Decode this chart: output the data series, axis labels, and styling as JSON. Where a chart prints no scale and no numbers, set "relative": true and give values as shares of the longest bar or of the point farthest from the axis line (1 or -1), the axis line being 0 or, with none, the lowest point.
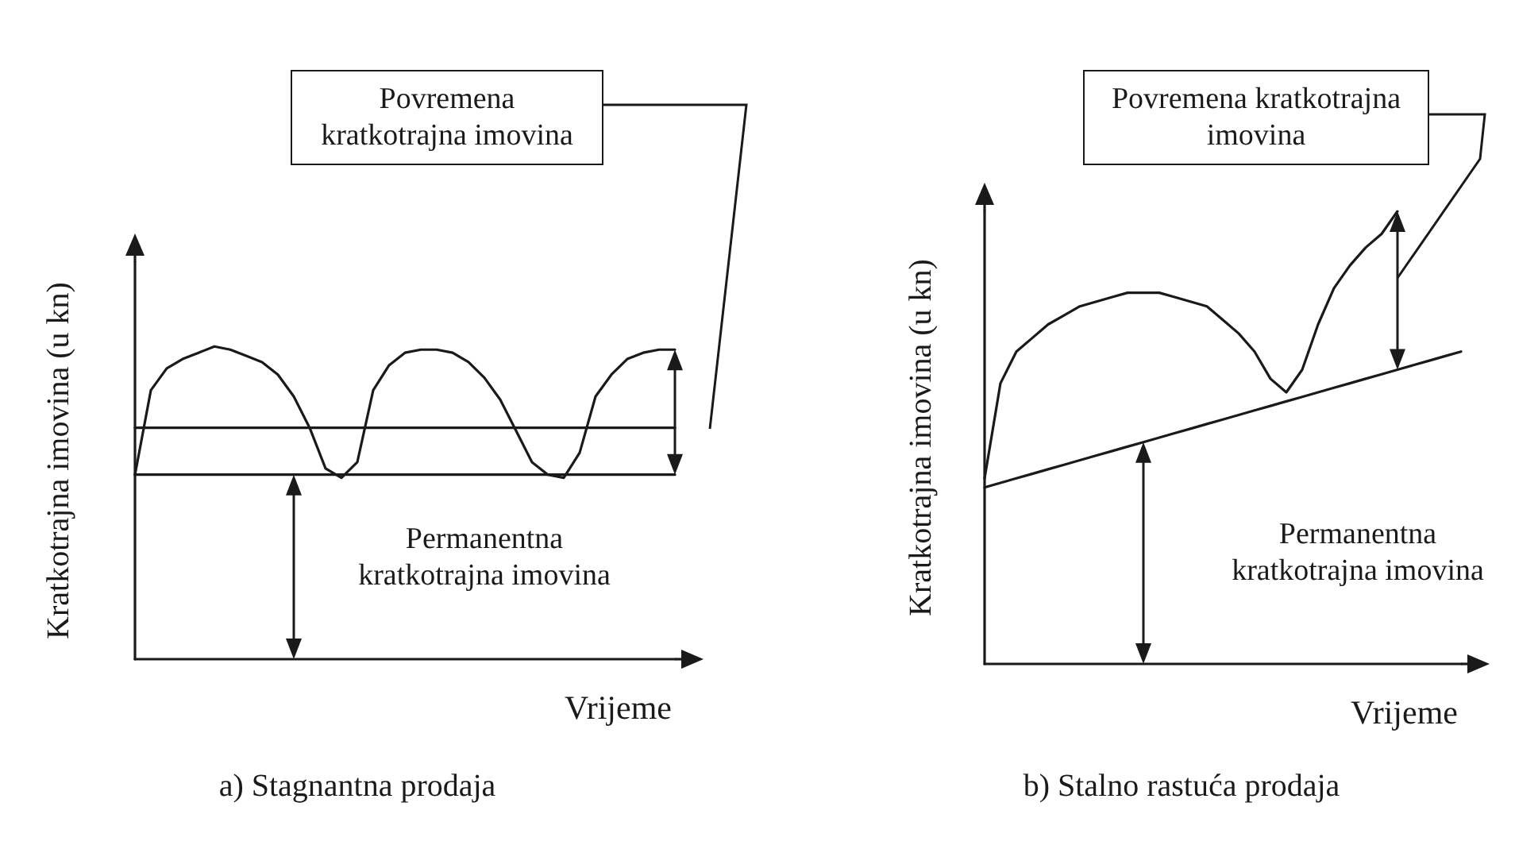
{
  "chart_data": [
    {
      "type": "line",
      "title": "a) Stagnantna prodaja",
      "xlabel": "Vrijeme",
      "ylabel": "Kratkotrajna imovina (u kn)",
      "relative": true,
      "marker": "none",
      "annotations": [
        "Povremena kratkotrajna imovina",
        "Permanentna kratkotrajna imovina"
      ],
      "categories": [
        null,
        null,
        null,
        null,
        null,
        null,
        null,
        null,
        null,
        null,
        null,
        null,
        null,
        null,
        null,
        null,
        null,
        null,
        null,
        null,
        null,
        null,
        null,
        null,
        null,
        null,
        null,
        null,
        null,
        null,
        null,
        null,
        null,
        null,
        null
      ],
      "series": [
        {
          "color": "#1a1a1a",
          "values": [
            0.59,
            0.86,
            0.93,
            0.96,
            0.98,
            1.0,
            0.99,
            0.97,
            0.95,
            0.91,
            0.84,
            0.74,
            0.61,
            0.58,
            0.63,
            0.86,
            0.94,
            0.98,
            0.99,
            0.99,
            0.98,
            0.95,
            0.9,
            0.83,
            0.73,
            0.63,
            0.59,
            0.58,
            0.66,
            0.84,
            0.91,
            0.96,
            0.98,
            0.99,
            0.99
          ]
        },
        {
          "color": "#1a1a1a",
          "values": [
            0.59,
            0.59,
            0.59,
            0.59,
            0.59,
            0.59,
            0.59,
            0.59,
            0.59,
            0.59,
            0.59,
            0.59,
            0.59,
            0.59,
            0.59,
            0.59,
            0.59,
            0.59,
            0.59,
            0.59,
            0.59,
            0.59,
            0.59,
            0.59,
            0.59,
            0.59,
            0.59,
            0.59,
            0.59,
            0.59,
            0.59,
            0.59,
            0.59,
            0.59,
            0.59
          ]
        },
        {
          "color": "#1a1a1a",
          "values": [
            0.74,
            0.74,
            0.74,
            0.74,
            0.74,
            0.74,
            0.74,
            0.74,
            0.74,
            0.74,
            0.74,
            0.74,
            0.74,
            0.74,
            0.74,
            0.74,
            0.74,
            0.74,
            0.74,
            0.74,
            0.74,
            0.74,
            0.74,
            0.74,
            0.74,
            0.74,
            0.74,
            0.74,
            0.74,
            0.74,
            0.74,
            0.74,
            0.74,
            0.74,
            0.74
          ]
        }
      ]
    },
    {
      "type": "line",
      "title": "b) Stalno rastuća prodaja",
      "xlabel": "Vrijeme",
      "ylabel": "Kratkotrajna imovina (u kn)",
      "relative": true,
      "marker": "none",
      "annotations": [
        "Povremena kratkotrajna imovina",
        "Permanentna kratkotrajna imovina"
      ],
      "categories": [
        null,
        null,
        null,
        null,
        null,
        null,
        null,
        null,
        null,
        null,
        null,
        null,
        null,
        null,
        null,
        null,
        null,
        null,
        null,
        null,
        null,
        null,
        null,
        null,
        null,
        null,
        null,
        null,
        null,
        null,
        null
      ],
      "series": [
        {
          "color": "#1a1a1a",
          "values": [
            0.41,
            0.62,
            0.69,
            0.72,
            0.75,
            0.77,
            0.79,
            0.8,
            0.81,
            0.82,
            0.82,
            0.82,
            0.81,
            0.8,
            0.79,
            0.76,
            0.73,
            0.69,
            0.63,
            0.6,
            0.65,
            0.75,
            0.83,
            0.88,
            0.92,
            0.95,
            1.0,
            null,
            null,
            null,
            null
          ]
        },
        {
          "color": "#1a1a1a",
          "values": [
            0.39,
            0.4,
            0.41,
            0.42,
            0.43,
            0.44,
            0.45,
            0.46,
            0.47,
            0.48,
            0.49,
            0.5,
            0.51,
            0.52,
            0.53,
            0.54,
            0.55,
            0.56,
            0.57,
            0.58,
            0.59,
            0.6,
            0.61,
            0.62,
            0.63,
            0.64,
            0.65,
            0.66,
            0.67,
            0.68,
            0.69
          ]
        }
      ]
    }
  ]
}
